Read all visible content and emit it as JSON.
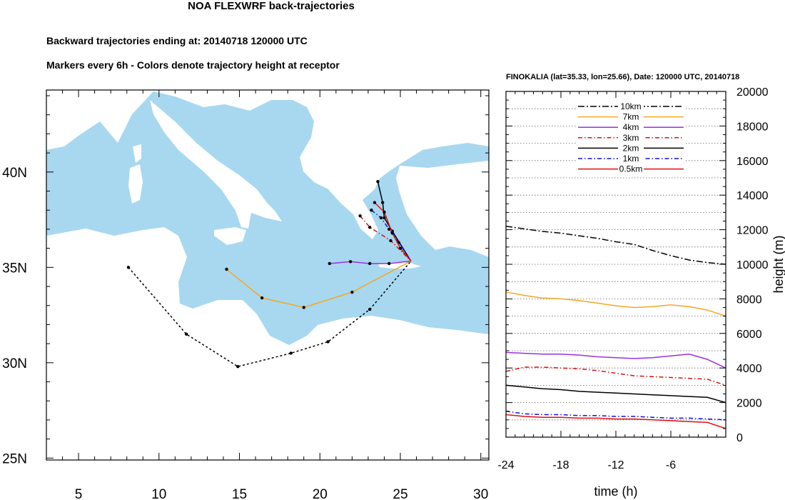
{
  "header": {
    "title": "NOA FLEXWRF back-trajectories",
    "subtitle_1": "Backward trajectories ending at: 20140718  120000 UTC",
    "subtitle_2": "Markers every 6h - Colors denote trajectory height at receptor"
  },
  "colors": {
    "sea": "#a7d8f0",
    "land": "#ffffff",
    "10km": "#000000",
    "7km": "#f5a623",
    "4km": "#9b30e0",
    "3km": "#e01010",
    "2km": "#000000",
    "1km": "#1010e0",
    "0.5km": "#e01010"
  },
  "chart_data": [
    {
      "type": "map",
      "x_ticks": [
        {
          "v": 5,
          "label": "5"
        },
        {
          "v": 10,
          "label": "10"
        },
        {
          "v": 15,
          "label": "15"
        },
        {
          "v": 20,
          "label": "20"
        },
        {
          "v": 25,
          "label": "25"
        },
        {
          "v": 30,
          "label": "30"
        }
      ],
      "y_ticks": [
        {
          "v": 25,
          "label": "25N"
        },
        {
          "v": 30,
          "label": "30N"
        },
        {
          "v": 35,
          "label": "35N"
        },
        {
          "v": 40,
          "label": "40N"
        }
      ],
      "xlim": [
        3,
        30.5
      ],
      "ylim": [
        24.9,
        44.3
      ],
      "receptor": {
        "lon": 25.66,
        "lat": 35.33
      },
      "trajectories": [
        {
          "name": "10km",
          "style": "dash",
          "points": [
            [
              8.1,
              35.0
            ],
            [
              11.7,
              31.5
            ],
            [
              14.9,
              29.8
            ],
            [
              18.2,
              30.5
            ],
            [
              20.5,
              31.1
            ],
            [
              23.1,
              32.8
            ],
            [
              25.66,
              35.33
            ]
          ]
        },
        {
          "name": "7km",
          "style": "solid",
          "points": [
            [
              14.2,
              34.9
            ],
            [
              16.4,
              33.4
            ],
            [
              19.0,
              32.9
            ],
            [
              22.0,
              33.7
            ],
            [
              25.66,
              35.33
            ]
          ]
        },
        {
          "name": "4km",
          "style": "solid",
          "points": [
            [
              20.6,
              35.2
            ],
            [
              21.9,
              35.3
            ],
            [
              23.1,
              35.2
            ],
            [
              24.3,
              35.2
            ],
            [
              25.66,
              35.33
            ]
          ]
        },
        {
          "name": "3km",
          "style": "dashdot",
          "points": [
            [
              22.5,
              37.7
            ],
            [
              23.1,
              37.1
            ],
            [
              24.4,
              36.4
            ],
            [
              25.66,
              35.33
            ]
          ]
        },
        {
          "name": "2km",
          "style": "solid",
          "points": [
            [
              23.6,
              39.5
            ],
            [
              23.9,
              38.4
            ],
            [
              24.0,
              37.6
            ],
            [
              24.5,
              36.9
            ],
            [
              25.66,
              35.33
            ]
          ]
        },
        {
          "name": "1km",
          "style": "dashdot",
          "points": [
            [
              23.2,
              38.0
            ],
            [
              23.8,
              37.6
            ],
            [
              24.3,
              37.0
            ],
            [
              24.9,
              36.3
            ],
            [
              25.66,
              35.33
            ]
          ]
        },
        {
          "name": "0.5km",
          "style": "solid",
          "points": [
            [
              23.4,
              38.4
            ],
            [
              24.0,
              37.9
            ],
            [
              24.5,
              36.8
            ],
            [
              25.0,
              36.0
            ],
            [
              25.66,
              35.33
            ]
          ]
        }
      ]
    },
    {
      "type": "line",
      "title": "FINOKALIA (lat=35.33,  lon=25.66), Date: 120000 UTC, 20140718",
      "xlabel": "time (h)",
      "ylabel": "height (m)",
      "xlim": [
        -24,
        0
      ],
      "ylim": [
        0,
        20000
      ],
      "x_ticks": [
        {
          "v": -24,
          "label": "-24"
        },
        {
          "v": -18,
          "label": "-18"
        },
        {
          "v": -12,
          "label": "-12"
        },
        {
          "v": -6,
          "label": "-6"
        }
      ],
      "y_ticks": [
        {
          "v": 0,
          "label": "0"
        },
        {
          "v": 2000,
          "label": "2000"
        },
        {
          "v": 4000,
          "label": "4000"
        },
        {
          "v": 6000,
          "label": "6000"
        },
        {
          "v": 8000,
          "label": "8000"
        },
        {
          "v": 10000,
          "label": "10000"
        },
        {
          "v": 12000,
          "label": "12000"
        },
        {
          "v": 14000,
          "label": "14000"
        },
        {
          "v": 16000,
          "label": "16000"
        },
        {
          "v": 18000,
          "label": "18000"
        },
        {
          "v": 20000,
          "label": "20000"
        }
      ],
      "x": [
        -24,
        -22,
        -20,
        -18,
        -16,
        -14,
        -12,
        -10,
        -8,
        -6,
        -4,
        -2,
        0
      ],
      "series": [
        {
          "name": "10km",
          "style": "dashdot2",
          "values": [
            12200,
            12050,
            11900,
            11800,
            11650,
            11500,
            11300,
            11150,
            10800,
            10500,
            10250,
            10100,
            10000
          ]
        },
        {
          "name": "7km",
          "style": "solid",
          "values": [
            8400,
            8200,
            8050,
            8000,
            7900,
            7750,
            7600,
            7500,
            7550,
            7650,
            7550,
            7350,
            7000
          ]
        },
        {
          "name": "4km",
          "style": "solid",
          "values": [
            4900,
            4850,
            4800,
            4800,
            4750,
            4650,
            4600,
            4550,
            4600,
            4700,
            4800,
            4500,
            4000
          ]
        },
        {
          "name": "3km",
          "style": "dashdot",
          "values": [
            3800,
            4050,
            4050,
            4000,
            3950,
            3850,
            3700,
            3550,
            3500,
            3450,
            3400,
            3350,
            3000
          ]
        },
        {
          "name": "2km",
          "style": "solid",
          "values": [
            3000,
            2900,
            2800,
            2750,
            2650,
            2600,
            2550,
            2500,
            2450,
            2400,
            2350,
            2300,
            2000
          ]
        },
        {
          "name": "1km",
          "style": "dashdot",
          "values": [
            1500,
            1350,
            1300,
            1300,
            1250,
            1250,
            1200,
            1200,
            1150,
            1100,
            1100,
            1050,
            1000
          ]
        },
        {
          "name": "0.5km",
          "style": "solid",
          "values": [
            1300,
            1200,
            1150,
            1150,
            1100,
            1100,
            1050,
            1050,
            1000,
            950,
            900,
            850,
            500
          ]
        }
      ],
      "legend_placement": "top-center",
      "grid": "dotted horizontal"
    }
  ]
}
